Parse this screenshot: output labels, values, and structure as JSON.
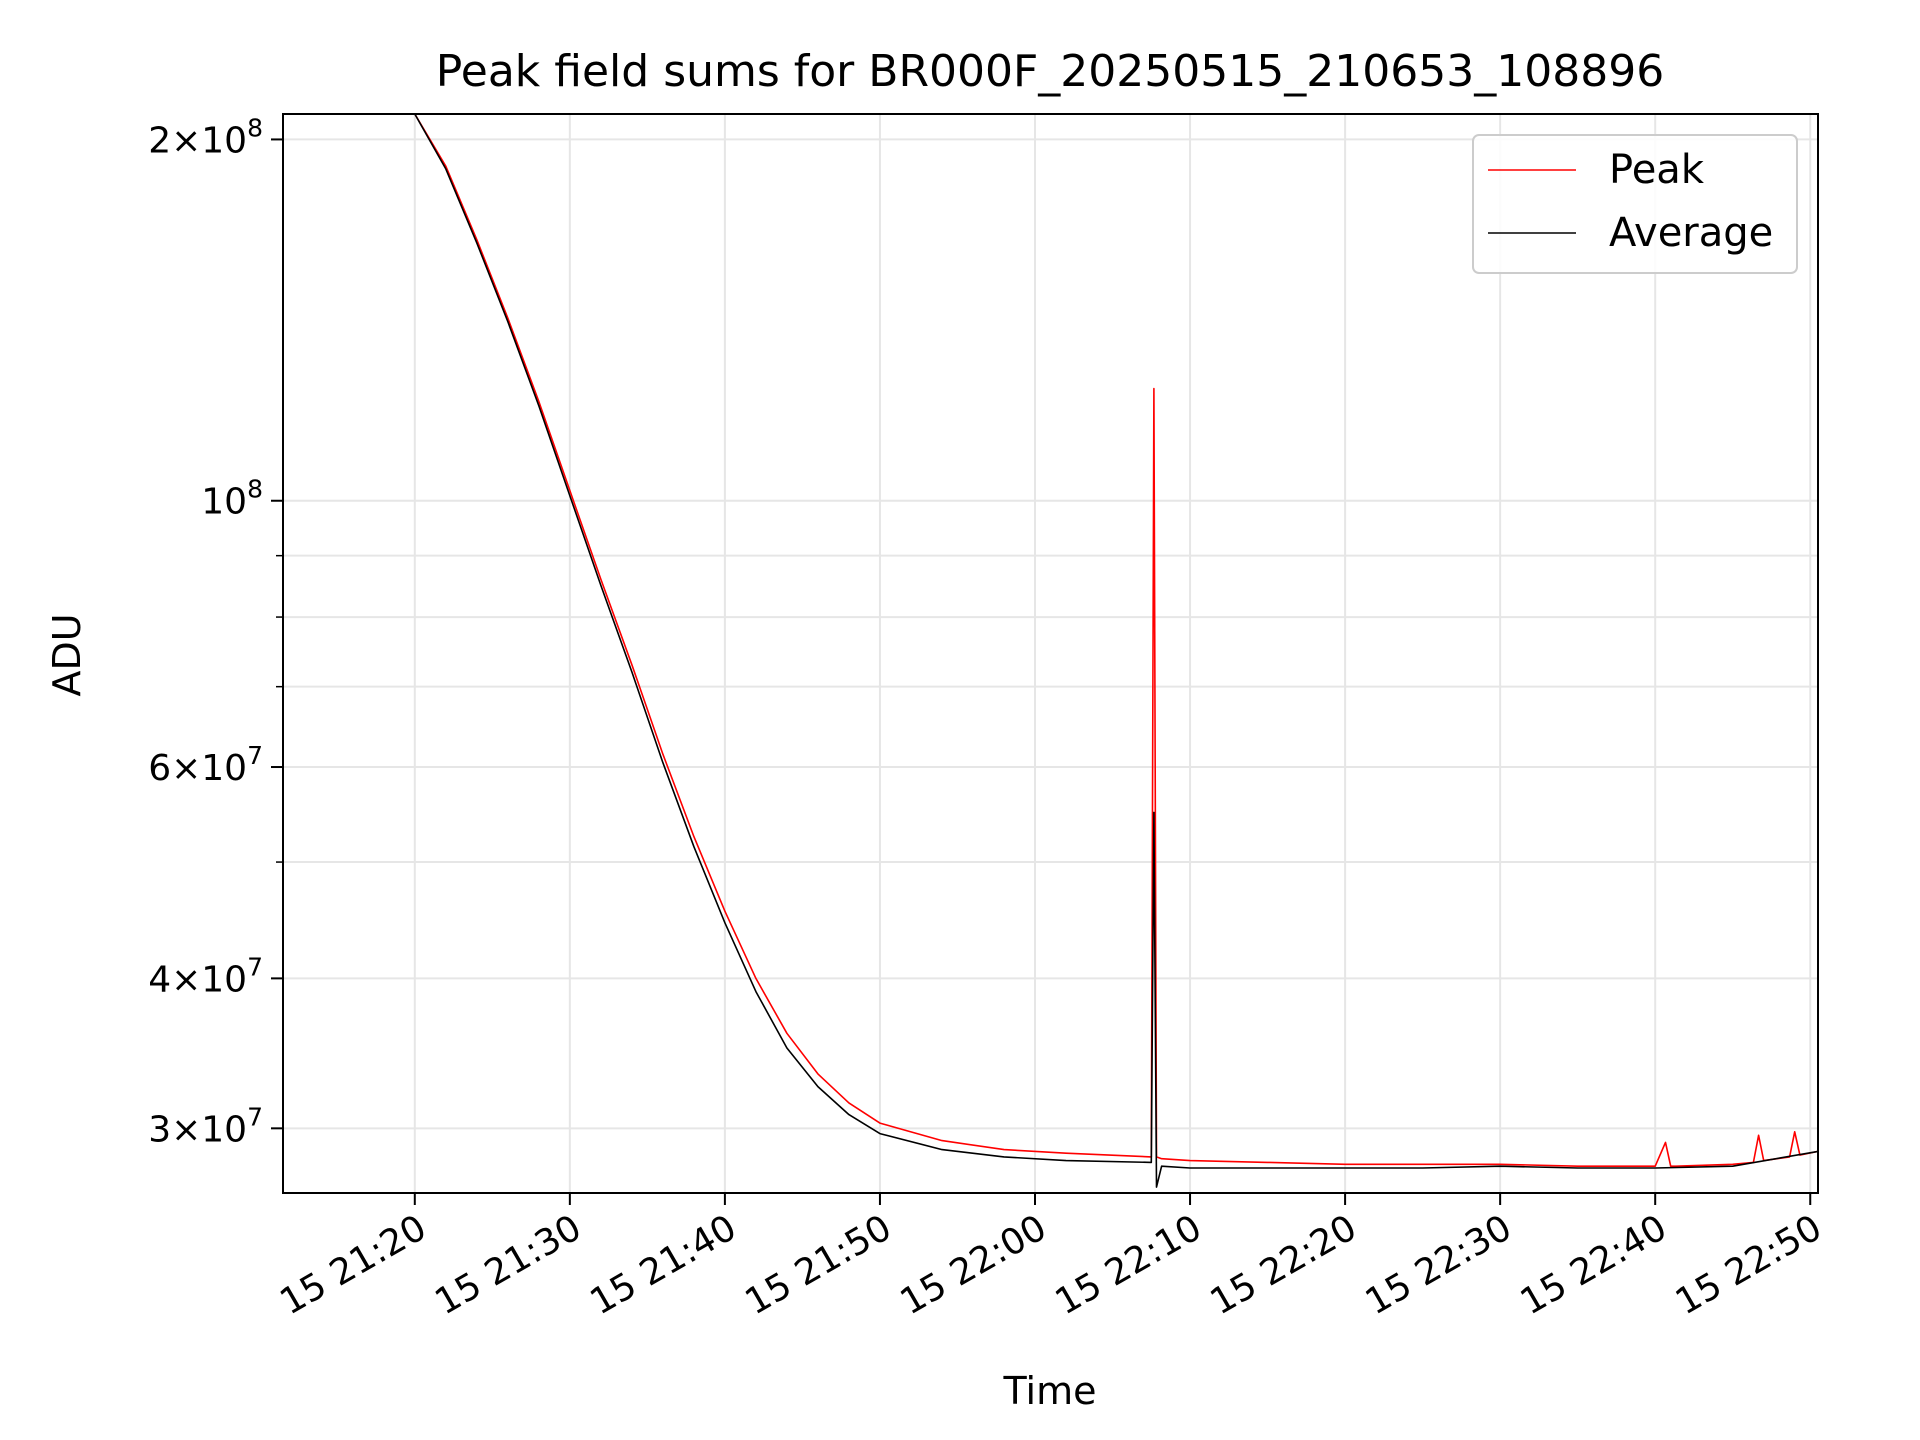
{
  "chart_data": {
    "type": "line",
    "title": "Peak field sums for BR000F_20250515_210653_108896",
    "xlabel": "Time",
    "ylabel": "ADU",
    "yscale": "log",
    "xlim": [
      "2025-05-15 21:11:30",
      "2025-05-15 22:50:30"
    ],
    "ylim": [
      26500000,
      210000000
    ],
    "x_tick_labels": [
      "15 21:20",
      "15 21:30",
      "15 21:40",
      "15 21:50",
      "15 22:00",
      "15 22:10",
      "15 22:20",
      "15 22:30",
      "15 22:40",
      "15 22:50"
    ],
    "x_ticks": [
      "2025-05-15 21:20",
      "2025-05-15 21:30",
      "2025-05-15 21:40",
      "2025-05-15 21:50",
      "2025-05-15 22:00",
      "2025-05-15 22:10",
      "2025-05-15 22:20",
      "2025-05-15 22:30",
      "2025-05-15 22:40",
      "2025-05-15 22:50"
    ],
    "y_major_ticks": [
      {
        "value": 200000000,
        "mantissa": "2",
        "exponent": "8"
      },
      {
        "value": 100000000,
        "mantissa": "",
        "exponent": "8"
      },
      {
        "value": 60000000,
        "mantissa": "6",
        "exponent": "7"
      },
      {
        "value": 40000000,
        "mantissa": "4",
        "exponent": "7"
      },
      {
        "value": 30000000,
        "mantissa": "3",
        "exponent": "7"
      }
    ],
    "y_minor_ticks": [
      90000000,
      80000000,
      70000000,
      50000000
    ],
    "grid": true,
    "legend_position": "top-right",
    "series": [
      {
        "name": "Peak",
        "color": "#ff0000",
        "x": [
          "2025-05-15 21:11:30",
          "2025-05-15 21:20:00",
          "2025-05-15 21:22:00",
          "2025-05-15 21:24:00",
          "2025-05-15 21:26:00",
          "2025-05-15 21:28:00",
          "2025-05-15 21:30:00",
          "2025-05-15 21:32:00",
          "2025-05-15 21:34:00",
          "2025-05-15 21:36:00",
          "2025-05-15 21:38:00",
          "2025-05-15 21:40:00",
          "2025-05-15 21:42:00",
          "2025-05-15 21:44:00",
          "2025-05-15 21:46:00",
          "2025-05-15 21:48:00",
          "2025-05-15 21:50:00",
          "2025-05-15 21:54:00",
          "2025-05-15 21:58:00",
          "2025-05-15 22:02:00",
          "2025-05-15 22:07:30",
          "2025-05-15 22:07:40",
          "2025-05-15 22:07:50",
          "2025-05-15 22:08:10",
          "2025-05-15 22:10:00",
          "2025-05-15 22:15:00",
          "2025-05-15 22:20:00",
          "2025-05-15 22:25:00",
          "2025-05-15 22:30:00",
          "2025-05-15 22:35:00",
          "2025-05-15 22:40:00",
          "2025-05-15 22:40:40",
          "2025-05-15 22:41:00",
          "2025-05-15 22:41:20",
          "2025-05-15 22:45:00",
          "2025-05-15 22:46:20",
          "2025-05-15 22:46:40",
          "2025-05-15 22:47:00",
          "2025-05-15 22:48:40",
          "2025-05-15 22:49:00",
          "2025-05-15 22:49:20",
          "2025-05-15 22:50:30"
        ],
        "y": [
          210000000,
          210000000,
          190000000,
          165000000,
          142000000,
          121000000,
          102000000,
          86000000,
          73000000,
          61500000,
          52500000,
          45500000,
          40000000,
          36000000,
          33300000,
          31500000,
          30300000,
          29300000,
          28800000,
          28600000,
          28400000,
          124000000,
          28400000,
          28300000,
          28200000,
          28100000,
          28000000,
          28000000,
          28000000,
          27900000,
          27900000,
          29200000,
          27900000,
          27900000,
          28000000,
          28100000,
          29600000,
          28200000,
          28400000,
          29800000,
          28500000,
          28700000
        ]
      },
      {
        "name": "Average",
        "color": "#000000",
        "x": [
          "2025-05-15 21:11:30",
          "2025-05-15 21:20:00",
          "2025-05-15 21:22:00",
          "2025-05-15 21:24:00",
          "2025-05-15 21:26:00",
          "2025-05-15 21:28:00",
          "2025-05-15 21:30:00",
          "2025-05-15 21:32:00",
          "2025-05-15 21:34:00",
          "2025-05-15 21:36:00",
          "2025-05-15 21:38:00",
          "2025-05-15 21:40:00",
          "2025-05-15 21:42:00",
          "2025-05-15 21:44:00",
          "2025-05-15 21:46:00",
          "2025-05-15 21:48:00",
          "2025-05-15 21:50:00",
          "2025-05-15 21:54:00",
          "2025-05-15 21:58:00",
          "2025-05-15 22:02:00",
          "2025-05-15 22:07:30",
          "2025-05-15 22:07:40",
          "2025-05-15 22:07:50",
          "2025-05-15 22:08:10",
          "2025-05-15 22:10:00",
          "2025-05-15 22:15:00",
          "2025-05-15 22:20:00",
          "2025-05-15 22:25:00",
          "2025-05-15 22:30:00",
          "2025-05-15 22:35:00",
          "2025-05-15 22:40:00",
          "2025-05-15 22:45:00",
          "2025-05-15 22:50:30"
        ],
        "y": [
          210000000,
          210000000,
          189000000,
          164000000,
          141000000,
          120000000,
          101000000,
          85000000,
          72000000,
          60500000,
          51500000,
          44500000,
          39000000,
          35000000,
          32500000,
          30800000,
          29700000,
          28800000,
          28400000,
          28200000,
          28100000,
          55000000,
          26800000,
          27900000,
          27800000,
          27800000,
          27800000,
          27800000,
          27900000,
          27800000,
          27800000,
          27900000,
          28700000
        ]
      }
    ]
  }
}
